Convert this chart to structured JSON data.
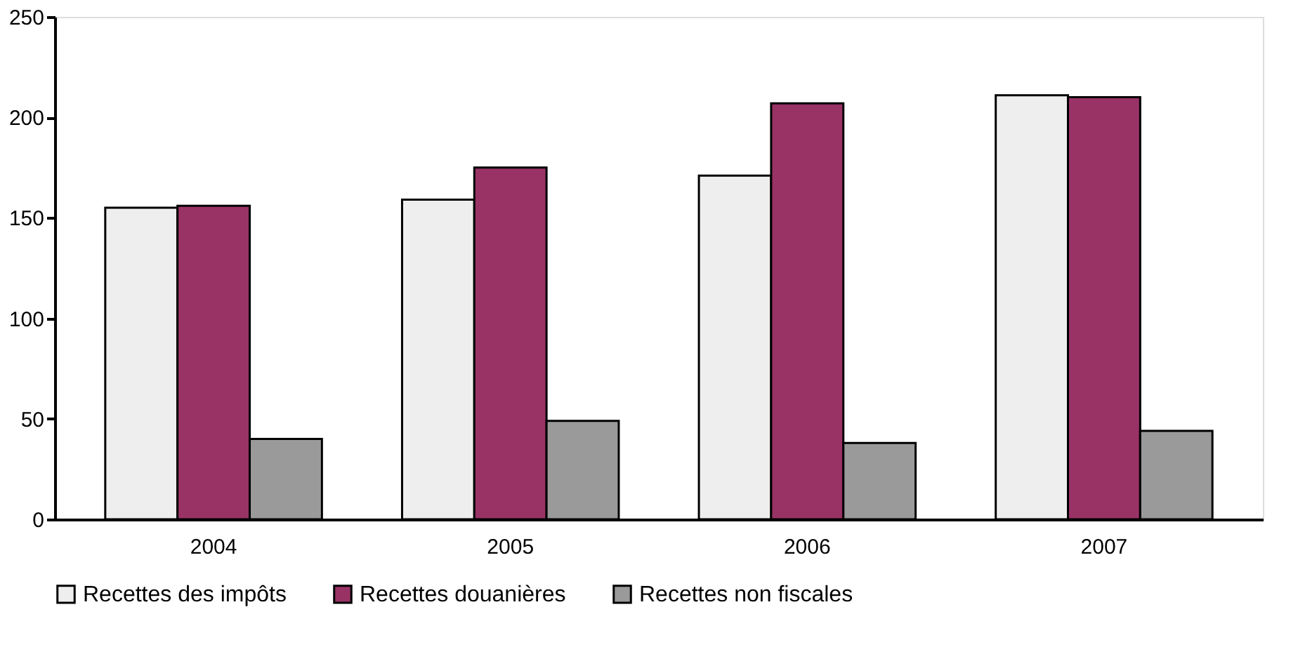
{
  "chart_data": {
    "type": "bar",
    "categories": [
      "2004",
      "2005",
      "2006",
      "2007"
    ],
    "series": [
      {
        "name": "Recettes des impôts",
        "color": "#eeeeee",
        "values": [
          155,
          159,
          171,
          211
        ]
      },
      {
        "name": "Recettes douanières",
        "color": "#993366",
        "values": [
          156,
          175,
          207,
          210
        ]
      },
      {
        "name": "Recettes non fiscales",
        "color": "#9a9a9a",
        "values": [
          40,
          49,
          38,
          44
        ]
      }
    ],
    "ylim": [
      0,
      250
    ],
    "yticks": [
      0,
      50,
      100,
      150,
      200,
      250
    ],
    "grid": false,
    "legend": "bottom"
  }
}
